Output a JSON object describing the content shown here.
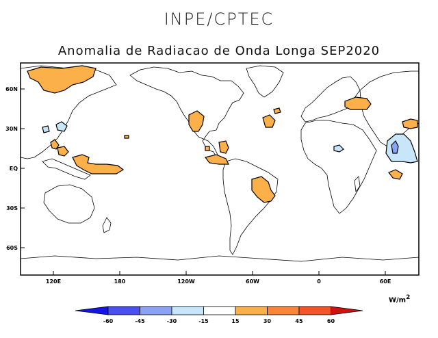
{
  "org_title": "INPE/CPTEC",
  "map_title": "Anomalia de Radiacao de Onda Longa SEP2020",
  "lat_labels": [
    "60N",
    "30N",
    "EQ",
    "30S",
    "60S"
  ],
  "lon_labels": [
    "120E",
    "180",
    "120W",
    "60W",
    "0",
    "60E"
  ],
  "colorbar": {
    "units": "W/m",
    "units_exp": "2",
    "labels": [
      "-60",
      "-45",
      "-30",
      "-15",
      "15",
      "30",
      "45",
      "60"
    ],
    "colors": [
      "#1414e6",
      "#4a4ff2",
      "#8aa3f5",
      "#c7e6fa",
      "#ffffff",
      "#fbb04a",
      "#f9843a",
      "#f4542a",
      "#d21010"
    ]
  },
  "palette": {
    "positive": "#fbb04a",
    "negative_light": "#c7e6fa",
    "negative_mid": "#8aa3f5"
  }
}
